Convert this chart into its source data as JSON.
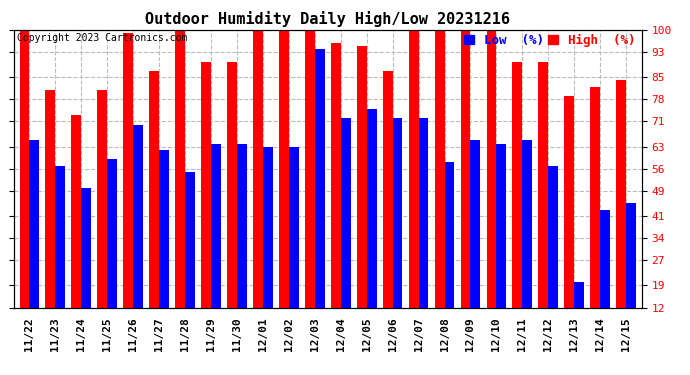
{
  "title": "Outdoor Humidity Daily High/Low 20231216",
  "copyright": "Copyright 2023 Cartronics.com",
  "legend_low_label": "Low  (%)",
  "legend_high_label": "High  (%)",
  "dates": [
    "11/22",
    "11/23",
    "11/24",
    "11/25",
    "11/26",
    "11/27",
    "11/28",
    "11/29",
    "11/30",
    "12/01",
    "12/02",
    "12/03",
    "12/04",
    "12/05",
    "12/06",
    "12/07",
    "12/08",
    "12/09",
    "12/10",
    "12/11",
    "12/12",
    "12/13",
    "12/14",
    "12/15"
  ],
  "high_values": [
    100,
    81,
    73,
    81,
    99,
    87,
    100,
    90,
    90,
    100,
    100,
    100,
    96,
    95,
    87,
    100,
    100,
    100,
    100,
    90,
    90,
    79,
    82,
    84
  ],
  "low_values": [
    65,
    57,
    50,
    59,
    70,
    62,
    55,
    64,
    64,
    63,
    63,
    94,
    72,
    75,
    72,
    72,
    58,
    65,
    64,
    65,
    57,
    20,
    43,
    45
  ],
  "bar_width": 0.38,
  "ylim": [
    12,
    100
  ],
  "yticks": [
    12,
    19,
    27,
    34,
    41,
    49,
    56,
    63,
    71,
    78,
    85,
    93,
    100
  ],
  "high_color": "#ff0000",
  "low_color": "#0000ff",
  "bg_color": "#ffffff",
  "grid_color": "#bbbbbb",
  "title_fontsize": 11,
  "tick_fontsize": 8,
  "copyright_fontsize": 7,
  "legend_fontsize": 9
}
